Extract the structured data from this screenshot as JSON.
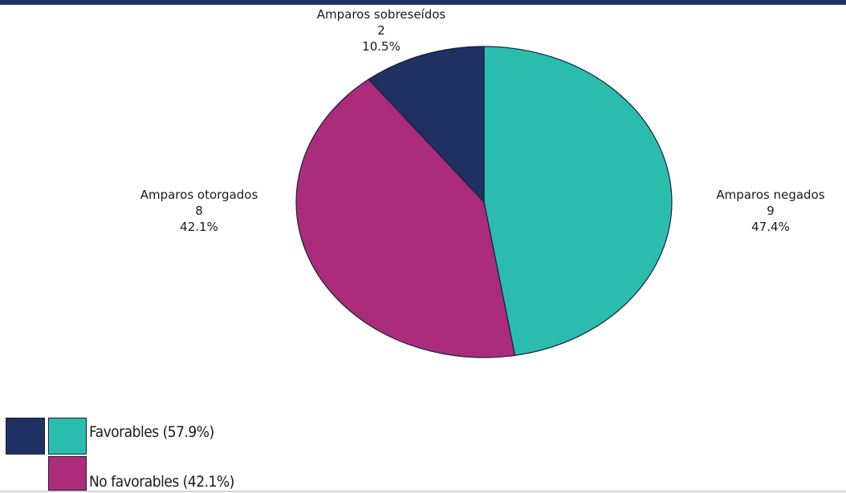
{
  "colors": {
    "header": "#1f3162",
    "sobreseidos": "#1f3162",
    "negados": "#2abdae",
    "otorgados": "#ab2c7b"
  },
  "chart_data": {
    "type": "pie",
    "title": "",
    "slices": [
      {
        "label": "Amparos negados",
        "value": 9,
        "percent": "47.4%",
        "color": "#2abdae"
      },
      {
        "label": "Amparos otorgados",
        "value": 8,
        "percent": "42.1%",
        "color": "#ab2c7b"
      },
      {
        "label": "Amparos sobreseídos",
        "value": 2,
        "percent": "10.5%",
        "color": "#1f3162"
      }
    ],
    "legend": [
      {
        "label": "Favorables (57.9%)",
        "colors": [
          "#1f3162",
          "#2abdae"
        ]
      },
      {
        "label": "No favorables (42.1%)",
        "colors": [
          "#ab2c7b"
        ]
      }
    ]
  }
}
